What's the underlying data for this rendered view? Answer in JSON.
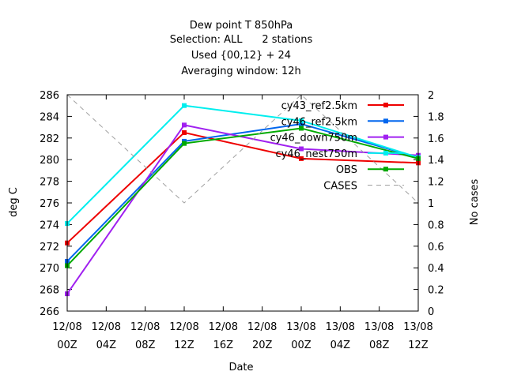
{
  "chart_data": {
    "type": "line",
    "title": "Dew point T 850hPa",
    "subtitle_lines": [
      "Selection: ALL      2 stations",
      "Used {00,12} + 24",
      "Averaging window: 12h"
    ],
    "xlabel": "Date",
    "ylabel": "deg C",
    "y2label": "No cases",
    "x_ticks": [
      {
        "date": "2012-08-12 00Z",
        "line1": "12/08",
        "line2": "00Z"
      },
      {
        "date": "2012-08-12 04Z",
        "line1": "12/08",
        "line2": "04Z"
      },
      {
        "date": "2012-08-12 08Z",
        "line1": "12/08",
        "line2": "08Z"
      },
      {
        "date": "2012-08-12 12Z",
        "line1": "12/08",
        "line2": "12Z"
      },
      {
        "date": "2012-08-12 16Z",
        "line1": "12/08",
        "line2": "16Z"
      },
      {
        "date": "2012-08-12 20Z",
        "line1": "12/08",
        "line2": "20Z"
      },
      {
        "date": "2012-08-13 00Z",
        "line1": "13/08",
        "line2": "00Z"
      },
      {
        "date": "2012-08-13 04Z",
        "line1": "13/08",
        "line2": "04Z"
      },
      {
        "date": "2012-08-13 08Z",
        "line1": "13/08",
        "line2": "08Z"
      },
      {
        "date": "2012-08-13 12Z",
        "line1": "13/08",
        "line2": "12Z"
      }
    ],
    "x": [
      "12/08 00Z",
      "12/08 12Z",
      "13/08 00Z",
      "13/08 12Z"
    ],
    "ylim": [
      266,
      286
    ],
    "y_ticks": [
      266,
      268,
      270,
      272,
      274,
      276,
      278,
      280,
      282,
      284,
      286
    ],
    "y2lim": [
      0,
      2
    ],
    "y2_ticks": [
      "0",
      "0.2",
      "0.4",
      "0.6",
      "0.8",
      "1",
      "1.2",
      "1.4",
      "1.6",
      "1.8",
      "2"
    ],
    "grid": false,
    "legend_position": "top-right",
    "series": [
      {
        "name": "cy43_ref2.5km",
        "color": "#ee0000",
        "values": [
          272.3,
          282.5,
          280.1,
          279.7
        ],
        "axis": "y"
      },
      {
        "name": "cy46_ref2.5km",
        "color": "#0066ee",
        "values": [
          270.6,
          281.7,
          283.3,
          280.2
        ],
        "axis": "y"
      },
      {
        "name": "cy46_down750m",
        "color": "#a020f0",
        "values": [
          267.6,
          283.2,
          281.0,
          280.4
        ],
        "axis": "y"
      },
      {
        "name": "cy46_nest750m",
        "color": "#00eeee",
        "values": [
          274.1,
          285.0,
          283.6,
          280.2
        ],
        "axis": "y"
      },
      {
        "name": "OBS",
        "color": "#00aa00",
        "values": [
          270.2,
          281.5,
          282.9,
          280.1
        ],
        "axis": "y"
      },
      {
        "name": "CASES",
        "color": "#a0a0a0",
        "values": [
          2,
          1,
          2,
          1
        ],
        "axis": "y2",
        "dashed": true,
        "markers": false
      }
    ]
  }
}
